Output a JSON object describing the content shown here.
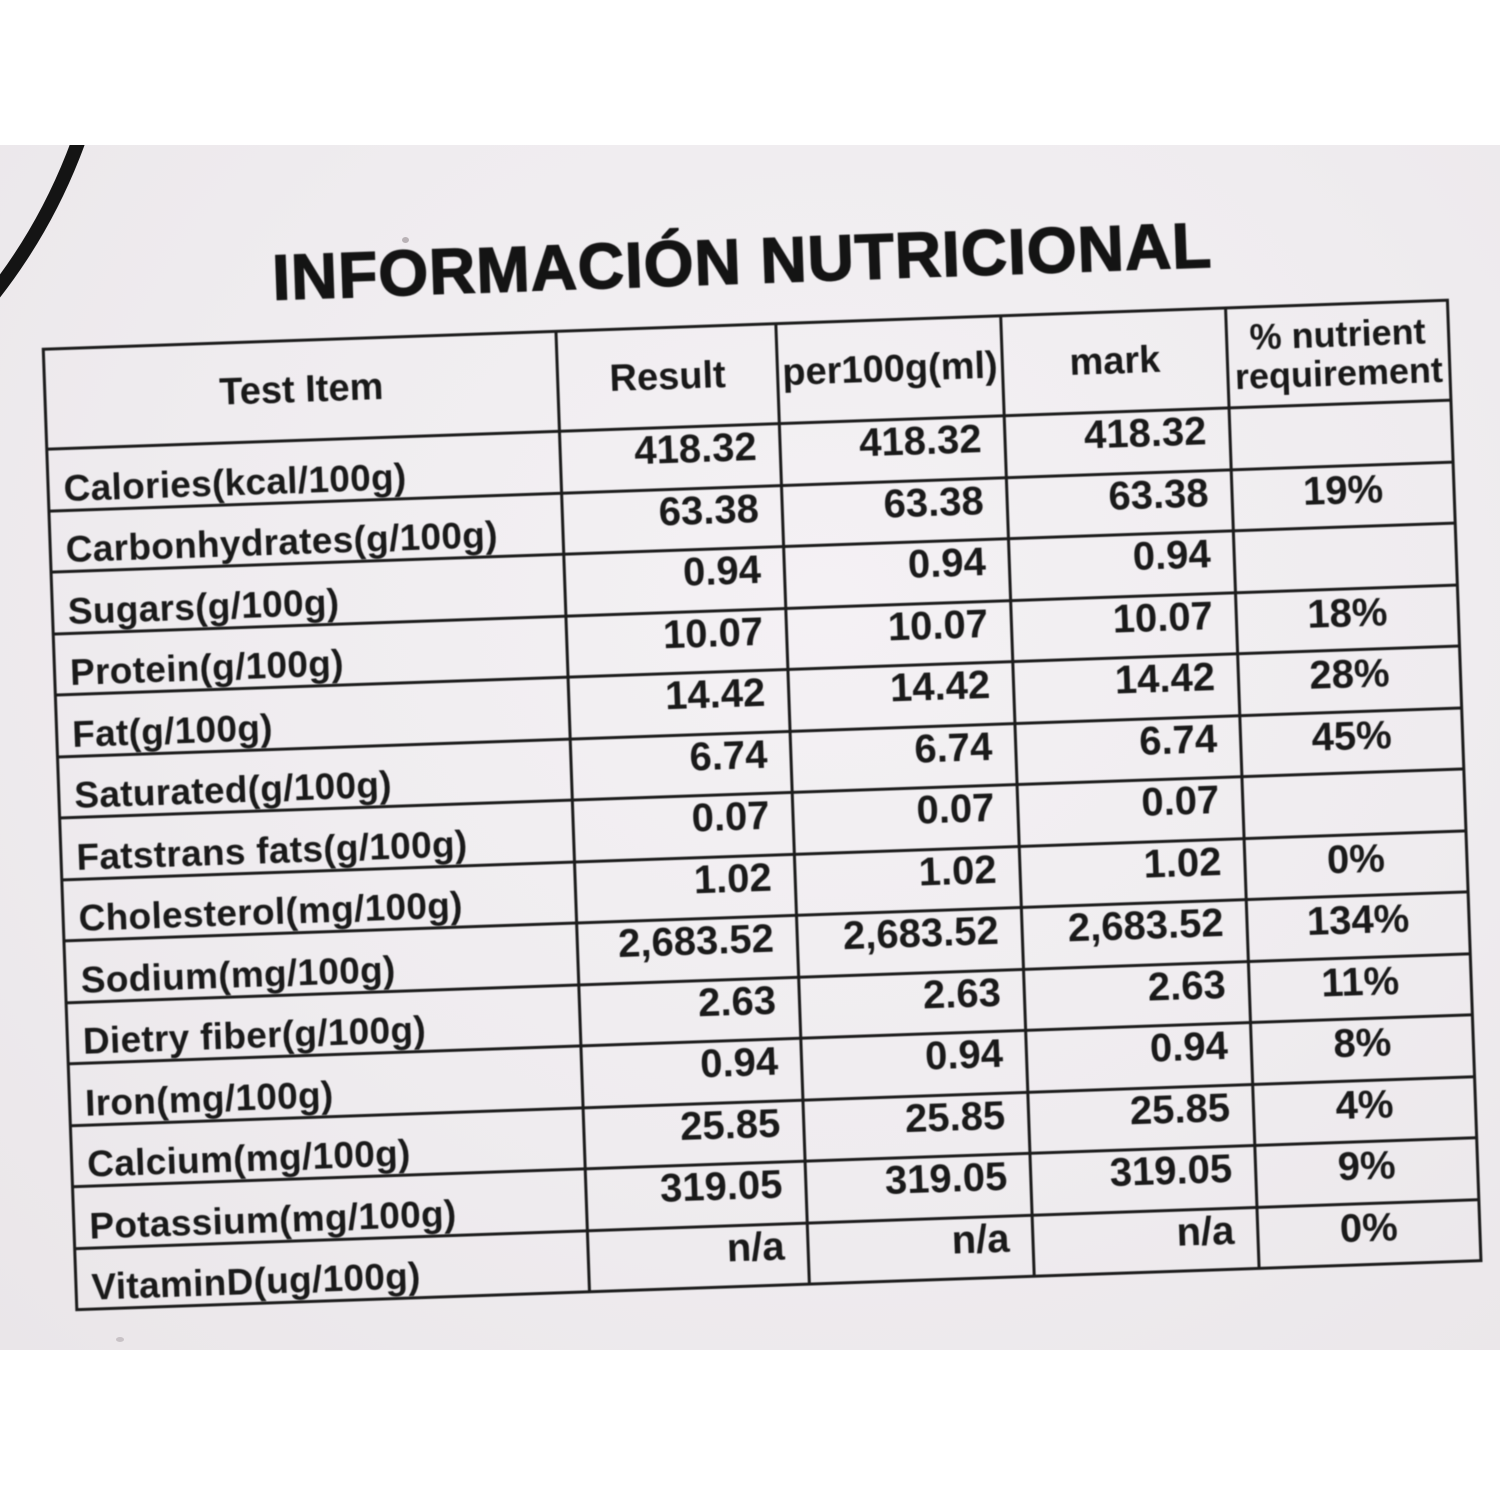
{
  "photo": {
    "title": "INFORMACIÓN NUTRICIONAL",
    "colors": {
      "page_background": "#ffffff",
      "photo_background": "#efecef",
      "table_border": "#1c1c1c",
      "text": "#1a1a1a"
    }
  },
  "table": {
    "columns": [
      "Test Item",
      "Result",
      "per100g(ml)",
      "mark",
      "% nutrient requirement"
    ],
    "rows": [
      {
        "item": "Calories(kcal/100g)",
        "result": "418.32",
        "per100g": "418.32",
        "mark": "418.32",
        "pct": ""
      },
      {
        "item": "Carbonhydrates(g/100g)",
        "result": "63.38",
        "per100g": "63.38",
        "mark": "63.38",
        "pct": "19%"
      },
      {
        "item": "Sugars(g/100g)",
        "result": "0.94",
        "per100g": "0.94",
        "mark": "0.94",
        "pct": ""
      },
      {
        "item": "Protein(g/100g)",
        "result": "10.07",
        "per100g": "10.07",
        "mark": "10.07",
        "pct": "18%"
      },
      {
        "item": "Fat(g/100g)",
        "result": "14.42",
        "per100g": "14.42",
        "mark": "14.42",
        "pct": "28%"
      },
      {
        "item": "Saturated(g/100g)",
        "result": "6.74",
        "per100g": "6.74",
        "mark": "6.74",
        "pct": "45%"
      },
      {
        "item": "Fatstrans fats(g/100g)",
        "result": "0.07",
        "per100g": "0.07",
        "mark": "0.07",
        "pct": ""
      },
      {
        "item": "Cholesterol(mg/100g)",
        "result": "1.02",
        "per100g": "1.02",
        "mark": "1.02",
        "pct": "0%"
      },
      {
        "item": "Sodium(mg/100g)",
        "result": "2,683.52",
        "per100g": "2,683.52",
        "mark": "2,683.52",
        "pct": "134%"
      },
      {
        "item": "Dietry fiber(g/100g)",
        "result": "2.63",
        "per100g": "2.63",
        "mark": "2.63",
        "pct": "11%"
      },
      {
        "item": "Iron(mg/100g)",
        "result": "0.94",
        "per100g": "0.94",
        "mark": "0.94",
        "pct": "8%"
      },
      {
        "item": "Calcium(mg/100g)",
        "result": "25.85",
        "per100g": "25.85",
        "mark": "25.85",
        "pct": "4%"
      },
      {
        "item": "Potassium(mg/100g)",
        "result": "319.05",
        "per100g": "319.05",
        "mark": "319.05",
        "pct": "9%"
      },
      {
        "item": "VitaminD(ug/100g)",
        "result": "n/a",
        "per100g": "n/a",
        "mark": "n/a",
        "pct": "0%"
      }
    ]
  }
}
